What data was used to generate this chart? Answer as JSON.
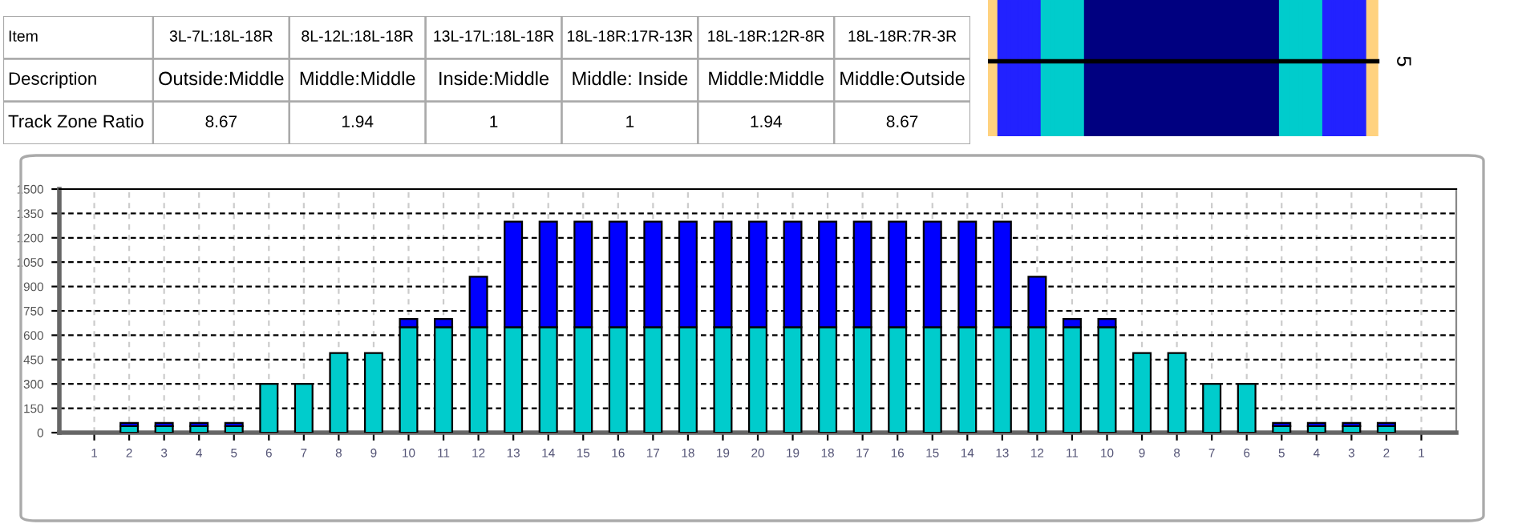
{
  "chart_data": [
    {
      "type": "other",
      "annotations": [
        "Item",
        "3L-7L:18L-18R",
        "8L-12L:18L-18R",
        "13L-17L:18L-18R",
        "18L-18R:17R-13R",
        "18L-18R:12R-8R",
        "18L-18R:7R-3R",
        "Description",
        "Outside:Middle",
        "Middle:Middle",
        "Inside:Middle",
        "Middle: Inside",
        "Middle:Middle",
        "Middle:Outside",
        "Track Zone Ratio",
        "8.67",
        "1.94",
        "1",
        "1",
        "1.94",
        "8.67"
      ]
    },
    {
      "type": "other",
      "annotations": [
        "5"
      ]
    },
    {
      "type": "bar",
      "stacked": true,
      "grid": true,
      "categories": [
        "1",
        "2",
        "3",
        "4",
        "5",
        "6",
        "7",
        "8",
        "9",
        "10",
        "11",
        "12",
        "13",
        "14",
        "15",
        "16",
        "17",
        "18",
        "19",
        "20",
        "19",
        "18",
        "17",
        "16",
        "15",
        "14",
        "13",
        "12",
        "11",
        "10",
        "9",
        "8",
        "7",
        "6",
        "5",
        "4",
        "3",
        "2",
        "1"
      ],
      "series": [
        {
          "color": "#00cccc",
          "values": [
            0,
            40,
            40,
            40,
            40,
            300,
            300,
            490,
            490,
            650,
            650,
            650,
            650,
            650,
            650,
            650,
            650,
            650,
            650,
            650,
            650,
            650,
            650,
            650,
            650,
            650,
            650,
            650,
            650,
            650,
            490,
            490,
            300,
            300,
            40,
            40,
            40,
            40,
            0
          ]
        },
        {
          "color": "#0000ff",
          "values": [
            null,
            20,
            20,
            20,
            20,
            null,
            null,
            null,
            null,
            50,
            50,
            310,
            650,
            650,
            650,
            650,
            650,
            650,
            650,
            650,
            650,
            650,
            650,
            650,
            650,
            650,
            650,
            310,
            50,
            50,
            null,
            null,
            null,
            null,
            20,
            20,
            20,
            20,
            null
          ]
        }
      ],
      "ylim": [
        0,
        1500
      ],
      "yticks": [
        0,
        150,
        300,
        450,
        600,
        750,
        900,
        1050,
        1200,
        1350,
        1500
      ]
    }
  ]
}
